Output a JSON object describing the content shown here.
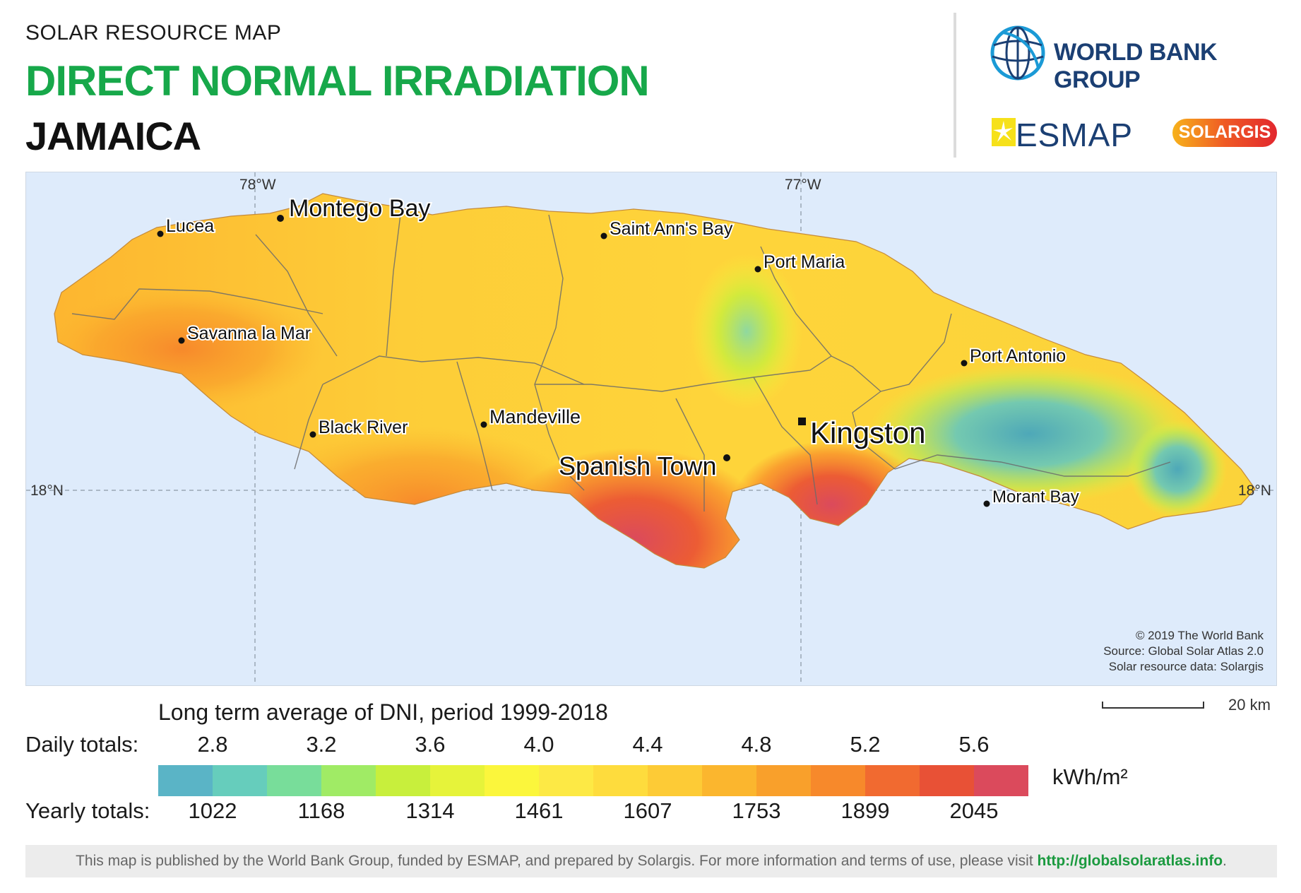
{
  "header": {
    "subtitle": "SOLAR RESOURCE MAP",
    "title": "DIRECT NORMAL IRRADIATION",
    "country": "JAMAICA"
  },
  "logos": {
    "world_bank": "WORLD BANK GROUP",
    "esmap": "ESMAP",
    "solargis": "SOLARGIS",
    "world_bank_color": "#1b3f73",
    "esmap_icon": "sun-burst-icon",
    "globe_icon": "globe-icon"
  },
  "map": {
    "graticule": {
      "lon_78": "78°W",
      "lon_77": "77°W",
      "lat_18_left": "18°N",
      "lat_18_right": "18°N"
    },
    "cities": [
      {
        "name": "Montego Bay",
        "size": "large",
        "symbol": "dot"
      },
      {
        "name": "Lucea",
        "size": "small",
        "symbol": "dot"
      },
      {
        "name": "Saint Ann's Bay",
        "size": "small",
        "symbol": "dot"
      },
      {
        "name": "Port Maria",
        "size": "small",
        "symbol": "dot"
      },
      {
        "name": "Savanna la Mar",
        "size": "small",
        "symbol": "dot"
      },
      {
        "name": "Port Antonio",
        "size": "small",
        "symbol": "dot"
      },
      {
        "name": "Mandeville",
        "size": "small",
        "symbol": "dot"
      },
      {
        "name": "Black River",
        "size": "small",
        "symbol": "dot"
      },
      {
        "name": "Kingston",
        "size": "capital",
        "symbol": "square"
      },
      {
        "name": "Spanish Town",
        "size": "large",
        "symbol": "dot"
      },
      {
        "name": "Morant Bay",
        "size": "small",
        "symbol": "dot"
      }
    ],
    "credits": [
      "© 2019 The World Bank",
      "Source: Global Solar Atlas 2.0",
      "Solar resource data: Solargis"
    ],
    "scale_label": "20 km",
    "sea_color": "#deebfb"
  },
  "legend": {
    "title": "Long term average of DNI, period 1999-2018",
    "daily_label": "Daily totals:",
    "yearly_label": "Yearly totals:",
    "daily_values": [
      "2.8",
      "3.2",
      "3.6",
      "4.0",
      "4.4",
      "4.8",
      "5.2",
      "5.6"
    ],
    "yearly_values": [
      "1022",
      "1168",
      "1314",
      "1461",
      "1607",
      "1753",
      "1899",
      "2045"
    ],
    "unit": "kWh/m²",
    "colors": [
      "#5ab4c6",
      "#66cdbc",
      "#78dd9a",
      "#a0eb65",
      "#c8ef3c",
      "#e6f33a",
      "#fbf63c",
      "#fde945",
      "#fedc3d",
      "#fdcb36",
      "#fbb62e",
      "#f9a02b",
      "#f7892b",
      "#f16a30",
      "#e85136",
      "#db4a5c"
    ]
  },
  "footer": {
    "text": "This map is published by the World Bank Group, funded by ESMAP, and prepared by Solargis. For more information and terms of use, please visit",
    "link": "http://globalsolaratlas.info",
    "end": "."
  }
}
